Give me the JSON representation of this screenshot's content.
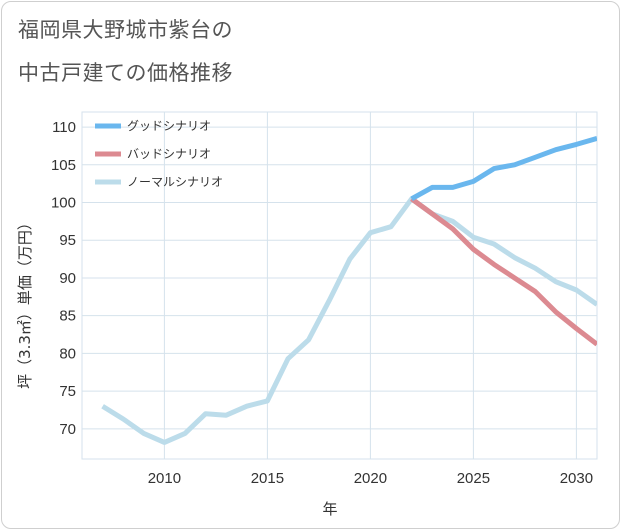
{
  "title": [
    "福岡県大野城市紫台の",
    "中古戸建ての価格推移"
  ],
  "chart_data": {
    "type": "line",
    "title": "福岡県大野城市紫台の中古戸建ての価格推移",
    "xlabel": "年",
    "ylabel": "坪（3.3㎡）単価（万円）",
    "xlim": [
      2006,
      2031
    ],
    "ylim": [
      66,
      112
    ],
    "xticks": [
      2010,
      2015,
      2020,
      2025,
      2030
    ],
    "yticks": [
      70,
      75,
      80,
      85,
      90,
      95,
      100,
      105,
      110
    ],
    "grid": true,
    "legend_position": "top-left",
    "series": [
      {
        "name": "グッドシナリオ",
        "color": "#6ab7ee",
        "x": [
          2022,
          2023,
          2024,
          2025,
          2026,
          2027,
          2028,
          2029,
          2030,
          2031
        ],
        "values": [
          100.5,
          102,
          102,
          102.8,
          104.5,
          105,
          106,
          107,
          107.7,
          108.5
        ]
      },
      {
        "name": "バッドシナリオ",
        "color": "#dc8a91",
        "x": [
          2022,
          2023,
          2024,
          2025,
          2026,
          2027,
          2028,
          2029,
          2030,
          2031
        ],
        "values": [
          100.5,
          98.5,
          96.5,
          93.8,
          91.8,
          90,
          88.2,
          85.5,
          83.3,
          81.2
        ]
      },
      {
        "name": "ノーマルシナリオ",
        "color": "#bcdcea",
        "x": [
          2007,
          2008,
          2009,
          2010,
          2011,
          2012,
          2013,
          2014,
          2015,
          2016,
          2017,
          2018,
          2019,
          2020,
          2021,
          2022,
          2023,
          2024,
          2025,
          2026,
          2027,
          2028,
          2029,
          2030,
          2031
        ],
        "values": [
          73,
          71.3,
          69.4,
          68.2,
          69.4,
          72,
          71.8,
          73,
          73.7,
          79.3,
          81.8,
          87,
          92.5,
          96,
          96.8,
          100.5,
          98.5,
          97.5,
          95.4,
          94.5,
          92.7,
          91.3,
          89.5,
          88.4,
          86.5
        ]
      }
    ]
  }
}
